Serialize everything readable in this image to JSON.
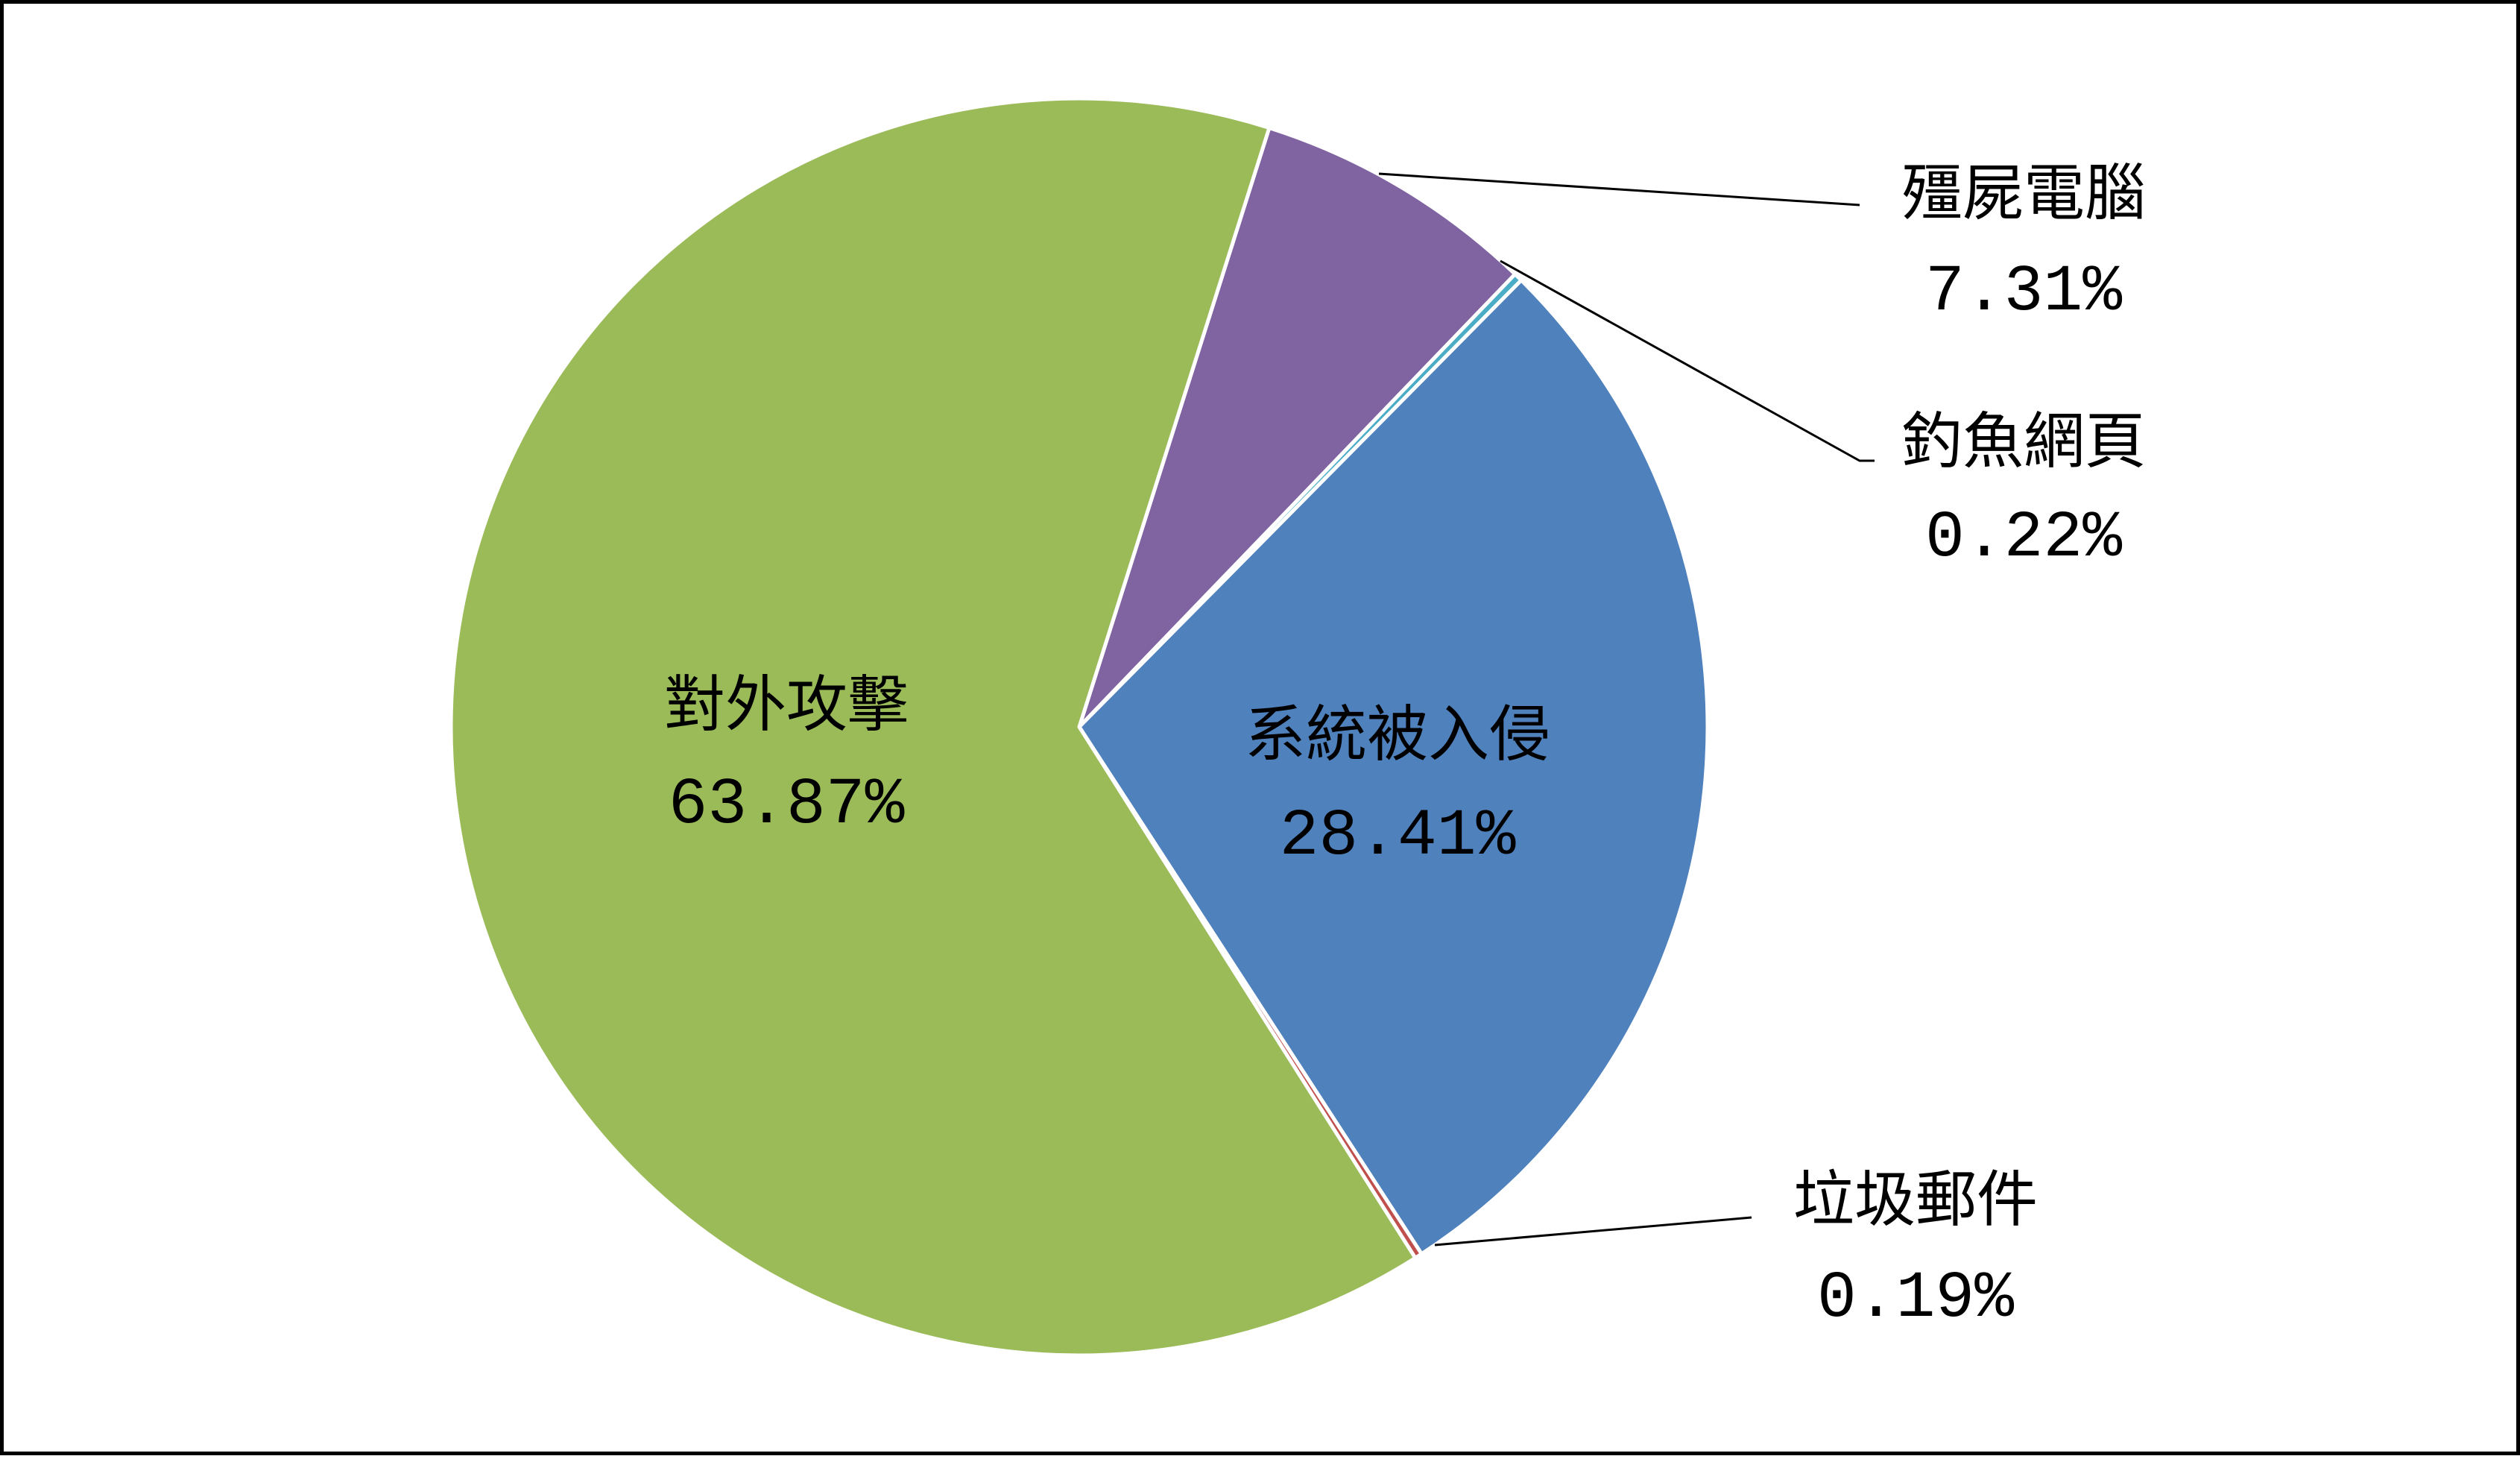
{
  "chart_data": {
    "type": "pie",
    "title": "",
    "slices": [
      {
        "label": "殭屍電腦",
        "value": 7.31,
        "value_label": "7.31%",
        "color": "#8064A2"
      },
      {
        "label": "釣魚網頁",
        "value": 0.22,
        "value_label": "0.22%",
        "color": "#4BACC6"
      },
      {
        "label": "系統被入侵",
        "value": 28.41,
        "value_label": "28.41%",
        "color": "#4F81BD"
      },
      {
        "label": "垃圾郵件",
        "value": 0.19,
        "value_label": "0.19%",
        "color": "#C0504D"
      },
      {
        "label": "對外攻擊",
        "value": 63.87,
        "value_label": "63.87%",
        "color": "#9BBB59"
      }
    ],
    "legend": "none",
    "data_labels": "category name and percentage"
  }
}
